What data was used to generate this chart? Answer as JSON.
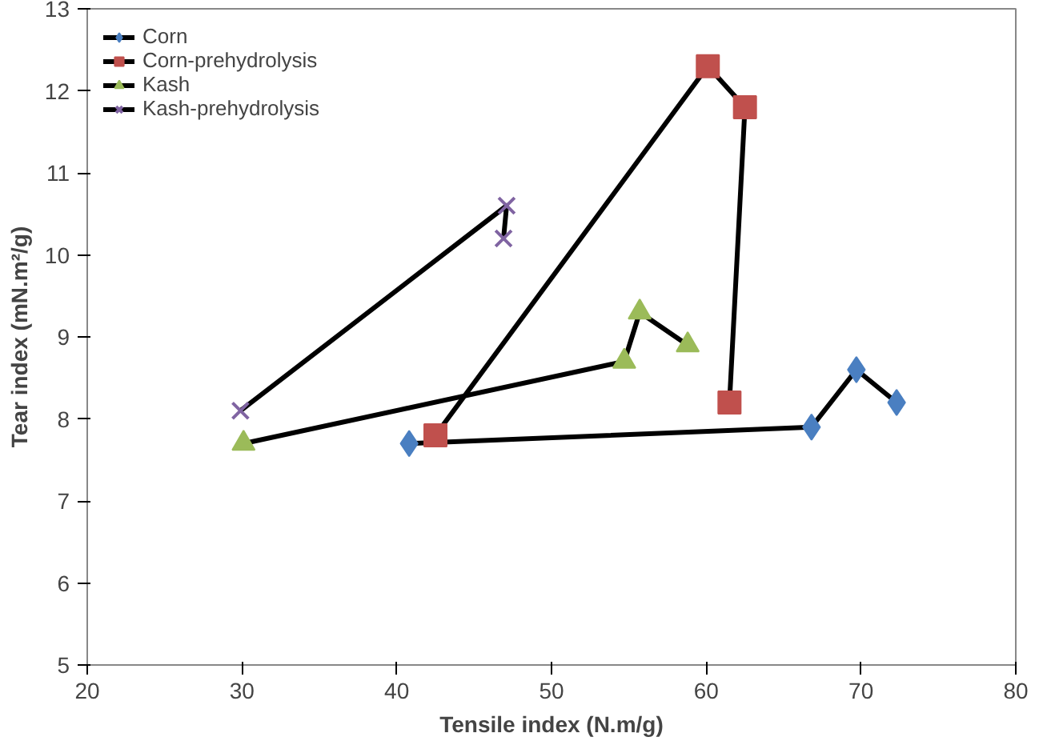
{
  "chart_data": {
    "type": "line",
    "xlabel": "Tensile index (N.m/g)",
    "ylabel": "Tear index (mN.m²/g)",
    "xlim": [
      20,
      80
    ],
    "ylim": [
      5,
      13
    ],
    "xticks": [
      20,
      30,
      40,
      50,
      60,
      70,
      80
    ],
    "yticks": [
      5,
      6,
      7,
      8,
      9,
      10,
      11,
      12,
      13
    ],
    "grid": false,
    "legend": "top left",
    "line_style": "solid",
    "series": [
      {
        "name": "Corn",
        "color": "#4a7fc1",
        "marker": "diamond",
        "x": [
          40.8,
          66.8,
          69.7,
          72.3
        ],
        "values": [
          7.7,
          7.9,
          8.6,
          8.2
        ]
      },
      {
        "name": "Corn-prehydrolysis",
        "color": "#c0504d",
        "marker": "square",
        "x": [
          42.5,
          60.1,
          62.5,
          61.5
        ],
        "values": [
          7.8,
          12.3,
          11.8,
          8.2
        ]
      },
      {
        "name": "Kash",
        "color": "#9bbb59",
        "marker": "triangle",
        "x": [
          30.1,
          54.7,
          55.7,
          58.8
        ],
        "values": [
          7.7,
          8.7,
          9.3,
          8.9
        ]
      },
      {
        "name": "Kash-prehydrolysis",
        "color": "#8064a2",
        "marker": "cross",
        "x": [
          29.9,
          47.1,
          46.9
        ],
        "values": [
          8.1,
          10.6,
          10.2
        ]
      }
    ]
  }
}
